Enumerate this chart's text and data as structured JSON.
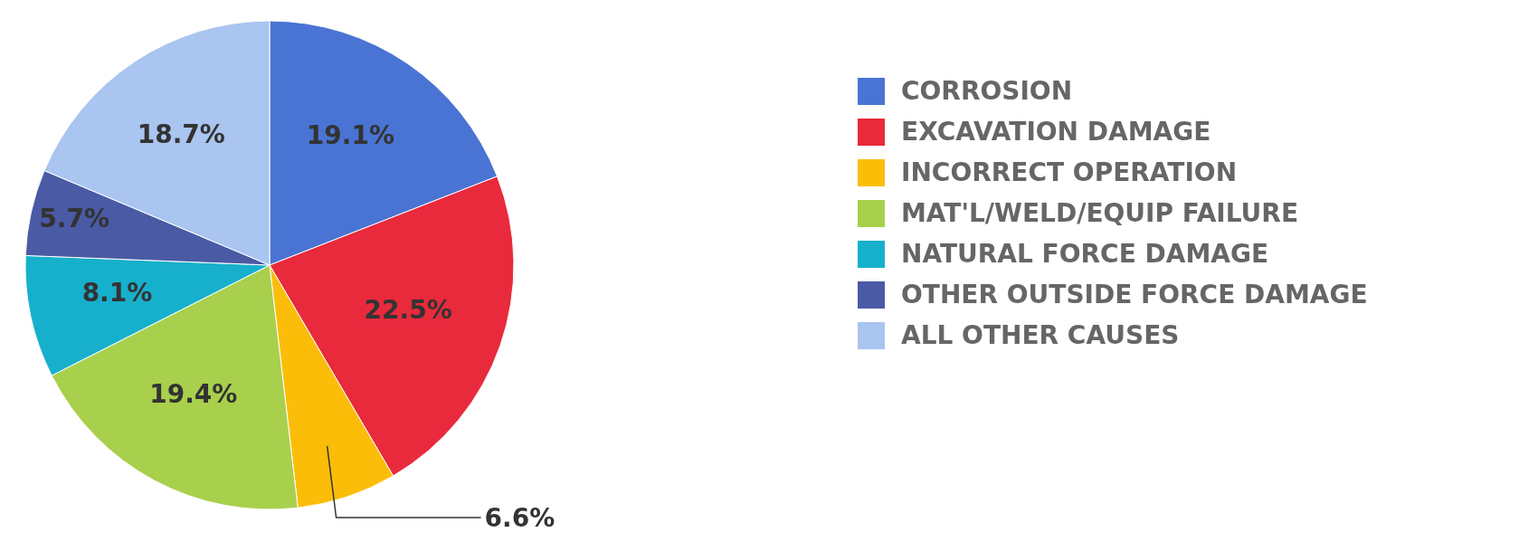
{
  "chart_data": {
    "type": "pie",
    "categories": [
      "CORROSION",
      "EXCAVATION DAMAGE",
      "INCORRECT OPERATION",
      "MAT'L/WELD/EQUIP FAILURE",
      "NATURAL FORCE DAMAGE",
      "OTHER OUTSIDE FORCE DAMAGE",
      "ALL OTHER CAUSES"
    ],
    "values": [
      19.1,
      22.5,
      6.6,
      19.4,
      8.1,
      5.7,
      18.7
    ],
    "colors": [
      "#4a74d4",
      "#e82a3c",
      "#fbbd08",
      "#a8d04c",
      "#17b0cc",
      "#4a5aa4",
      "#a9c5f0"
    ],
    "value_labels": [
      "19.1%",
      "22.5%",
      "6.6%",
      "19.4%",
      "8.1%",
      "5.7%",
      "18.7%"
    ],
    "legend": "right"
  }
}
